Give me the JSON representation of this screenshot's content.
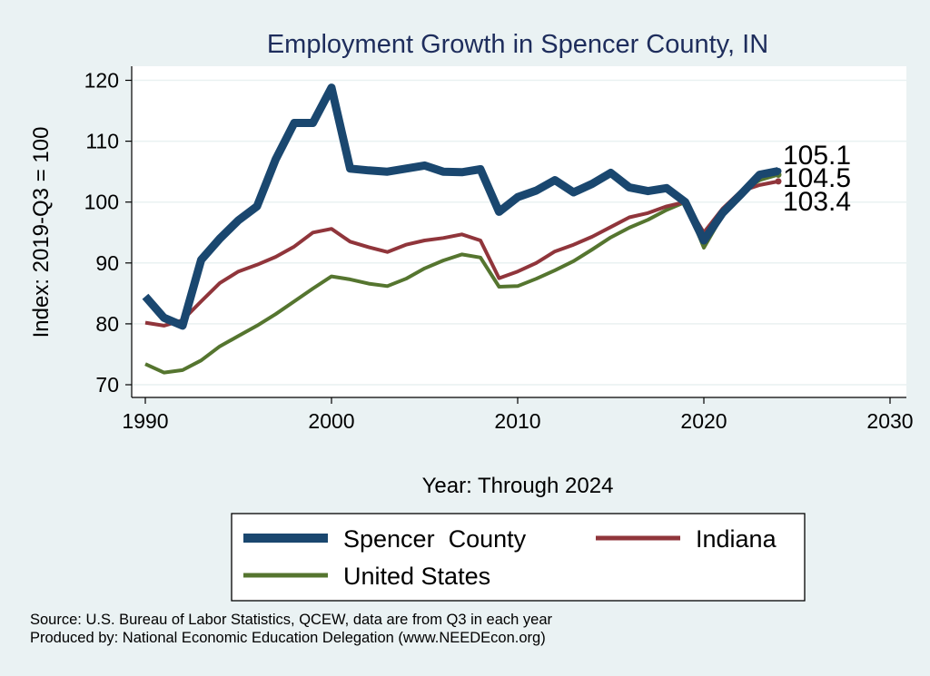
{
  "chart_data": {
    "type": "line",
    "title": "Employment Growth in Spencer County, IN",
    "xlabel": "Year: Through 2024",
    "ylabel": "Index: 2019-Q3 = 100",
    "xlim": [
      1990,
      2030
    ],
    "ylim": [
      68,
      123
    ],
    "xticks": [
      1990,
      2000,
      2010,
      2020,
      2030
    ],
    "yticks": [
      70,
      80,
      90,
      100,
      110,
      120
    ],
    "grid": true,
    "legend_position": "bottom",
    "x": [
      1990,
      1991,
      1992,
      1993,
      1994,
      1995,
      1996,
      1997,
      1998,
      1999,
      2000,
      2001,
      2002,
      2003,
      2004,
      2005,
      2006,
      2007,
      2008,
      2009,
      2010,
      2011,
      2012,
      2013,
      2014,
      2015,
      2016,
      2017,
      2018,
      2019,
      2020,
      2021,
      2022,
      2023,
      2024
    ],
    "series": [
      {
        "name": "Spencer  County",
        "color": "#1a476f",
        "end_label": "105.1",
        "values": [
          84.5,
          81.0,
          79.7,
          90.5,
          94.0,
          97.0,
          99.3,
          107.0,
          113.0,
          113.0,
          118.8,
          105.5,
          105.2,
          105.0,
          105.5,
          106.0,
          105.0,
          104.9,
          105.4,
          98.4,
          100.8,
          101.9,
          103.6,
          101.6,
          103.0,
          104.8,
          102.4,
          101.8,
          102.3,
          100.0,
          93.7,
          98.2,
          101.3,
          104.5,
          105.1
        ]
      },
      {
        "name": "Indiana",
        "color": "#90353b",
        "end_label": "103.4",
        "values": [
          80.2,
          79.7,
          80.6,
          83.7,
          86.7,
          88.6,
          89.7,
          91.0,
          92.7,
          95.0,
          95.6,
          93.5,
          92.6,
          91.8,
          93.0,
          93.7,
          94.1,
          94.7,
          93.7,
          87.5,
          88.6,
          90.0,
          91.9,
          93.0,
          94.3,
          95.9,
          97.5,
          98.2,
          99.3,
          100.0,
          95.0,
          98.9,
          101.8,
          102.8,
          103.4
        ]
      },
      {
        "name": "United States",
        "color": "#55752f",
        "end_label": "104.5",
        "values": [
          73.4,
          72.0,
          72.4,
          74.0,
          76.3,
          78.0,
          79.7,
          81.6,
          83.7,
          85.8,
          87.8,
          87.3,
          86.6,
          86.2,
          87.4,
          89.1,
          90.4,
          91.4,
          90.9,
          86.1,
          86.2,
          87.4,
          88.8,
          90.3,
          92.2,
          94.2,
          95.8,
          97.1,
          98.7,
          100.0,
          92.5,
          97.8,
          101.7,
          103.6,
          104.5
        ]
      }
    ]
  },
  "source_line": "Source: U.S. Bureau of Labor Statistics, QCEW, data are from Q3 in each year",
  "produced_line": "Produced by: National Economic Education Delegation (www.NEEDEcon.org)"
}
